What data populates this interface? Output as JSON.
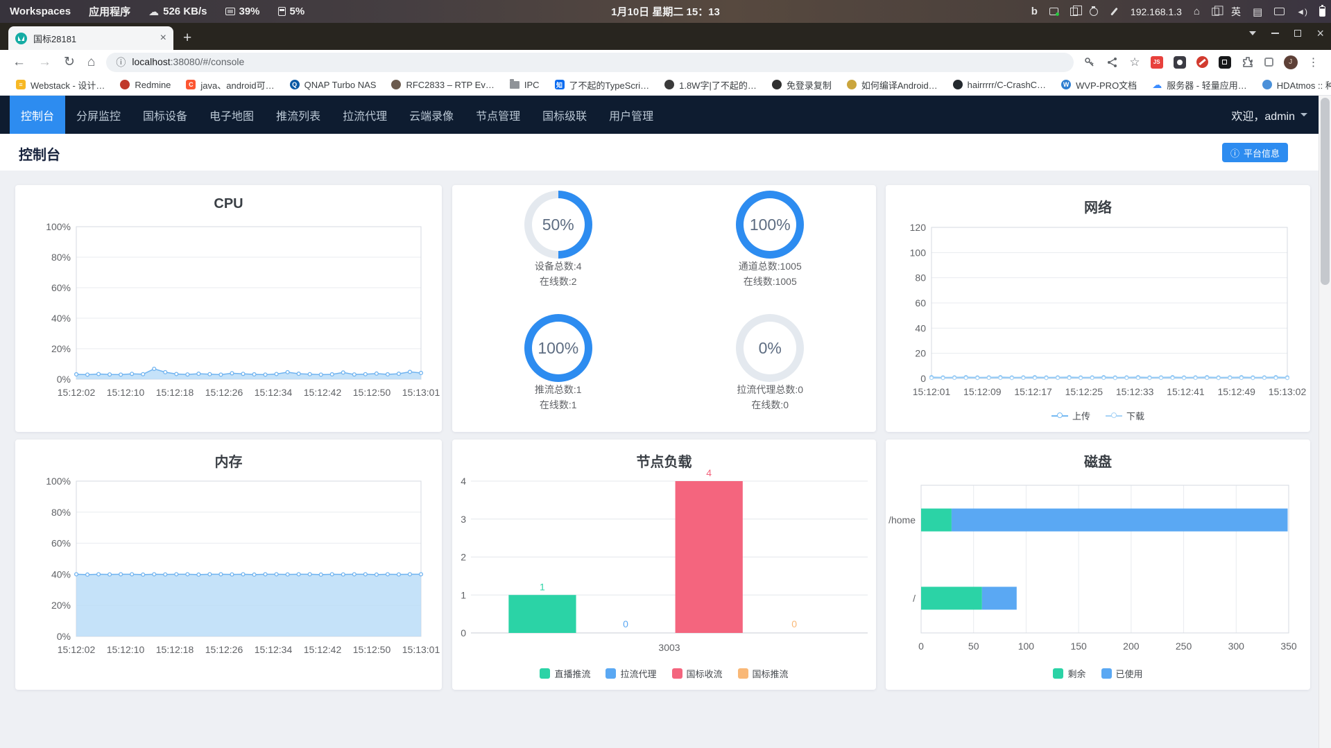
{
  "colors": {
    "primary": "#2d8cf0",
    "ring_track": "#e4e9ef",
    "navy": "#0e1c30",
    "green": "#2bd3a6",
    "blue": "#5aa8f3",
    "pink": "#f4657e",
    "orange": "#f9b877"
  },
  "system_bar": {
    "workspaces": "Workspaces",
    "applications": "应用程序",
    "network_speed": "526 KB/s",
    "cpu_usage": "39%",
    "memory_usage": "5%",
    "clock": "1月10日 星期二 15：13",
    "ip": "192.168.1.3",
    "input_language": "英"
  },
  "browser": {
    "tab_title": "国标28181",
    "url": {
      "host": "localhost",
      "rest": ":38080/#/console"
    },
    "bookmarks": [
      {
        "label": "Webstack - 设计…",
        "shape": "square",
        "color": "#f7b824",
        "letter": "≡"
      },
      {
        "label": "Redmine",
        "shape": "circle",
        "color": "#c0392b",
        "letter": ""
      },
      {
        "label": "java、android可…",
        "shape": "square",
        "color": "#fc5531",
        "letter": "C"
      },
      {
        "label": "QNAP Turbo NAS",
        "shape": "circle",
        "color": "#0a5aa5",
        "letter": "Q"
      },
      {
        "label": "RFC2833 – RTP Ev…",
        "shape": "circle",
        "color": "#6b5b4e",
        "letter": ""
      },
      {
        "label": "IPC",
        "shape": "folder",
        "color": "#8f9398",
        "letter": ""
      },
      {
        "label": "了不起的TypeScri…",
        "shape": "square",
        "color": "#0b6cf0",
        "letter": "知"
      },
      {
        "label": "1.8W字|了不起的…",
        "shape": "circle",
        "color": "#3a3a3a",
        "letter": ""
      },
      {
        "label": "免登录复制",
        "shape": "circle",
        "color": "#2f2f2f",
        "letter": ""
      },
      {
        "label": "如何编译Android…",
        "shape": "circle",
        "color": "#caa53d",
        "letter": ""
      },
      {
        "label": "hairrrrr/C-CrashC…",
        "shape": "circle",
        "color": "#24292e",
        "letter": ""
      },
      {
        "label": "WVP-PRO文档",
        "shape": "circle",
        "color": "#2f7fd1",
        "letter": "W"
      },
      {
        "label": "服务器 - 轻量应用…",
        "shape": "cloud",
        "color": "#3b8cff",
        "letter": "☁"
      },
      {
        "label": "HDAtmos :: 种子\"…",
        "shape": "circle",
        "color": "#4a90d9",
        "letter": ""
      }
    ]
  },
  "nav": {
    "items": [
      "控制台",
      "分屏监控",
      "国标设备",
      "电子地图",
      "推流列表",
      "拉流代理",
      "云端录像",
      "节点管理",
      "国标级联",
      "用户管理"
    ],
    "active_index": 0,
    "welcome": "欢迎，admin"
  },
  "page": {
    "title": "控制台",
    "platform_info_label": "平台信息"
  },
  "stats": {
    "items": [
      {
        "percent": 50,
        "label": "50%",
        "line1": "设备总数:4",
        "line2": "在线数:2"
      },
      {
        "percent": 100,
        "label": "100%",
        "line1": "通道总数:1005",
        "line2": "在线数:1005"
      },
      {
        "percent": 100,
        "label": "100%",
        "line1": "推流总数:1",
        "line2": "在线数:1"
      },
      {
        "percent": 0,
        "label": "0%",
        "line1": "拉流代理总数:0",
        "line2": "在线数:0"
      }
    ]
  },
  "chart_data": [
    {
      "id": "cpu",
      "type": "area",
      "title": "CPU",
      "x_ticks": [
        "15:12:02",
        "15:12:10",
        "15:12:18",
        "15:12:26",
        "15:12:34",
        "15:12:42",
        "15:12:50",
        "15:13:01"
      ],
      "y_ticks": [
        0,
        20,
        40,
        60,
        80,
        100
      ],
      "y_tick_suffix": "%",
      "ylim": [
        0,
        100
      ],
      "grid": true,
      "series": [
        {
          "name": "CPU",
          "color": "#6fb3f0",
          "fill": "#b6dbf8",
          "values": [
            3.2,
            3,
            3.4,
            3.1,
            3,
            3.5,
            3.3,
            6.8,
            4.6,
            3.4,
            3.1,
            3.6,
            3.3,
            3,
            3.9,
            3.5,
            3.2,
            3,
            3.4,
            4.6,
            3.6,
            3.3,
            3,
            3.2,
            4.4,
            3.1,
            3.3,
            3.7,
            3.2,
            3.6,
            4.8,
            4.1
          ]
        }
      ]
    },
    {
      "id": "memory",
      "type": "area",
      "title": "内存",
      "x_ticks": [
        "15:12:02",
        "15:12:10",
        "15:12:18",
        "15:12:26",
        "15:12:34",
        "15:12:42",
        "15:12:50",
        "15:13:01"
      ],
      "y_ticks": [
        0,
        20,
        40,
        60,
        80,
        100
      ],
      "y_tick_suffix": "%",
      "ylim": [
        0,
        100
      ],
      "grid": true,
      "series": [
        {
          "name": "内存",
          "color": "#6fb3f0",
          "fill": "#b6dbf8",
          "values": [
            40,
            39.8,
            40,
            39.9,
            40,
            40,
            39.8,
            40,
            39.9,
            40,
            40,
            39.8,
            40,
            40,
            39.9,
            40,
            39.8,
            40,
            40,
            39.9,
            40,
            40,
            39.8,
            40,
            39.9,
            40,
            40,
            39.8,
            40,
            39.9,
            40,
            40
          ]
        }
      ]
    },
    {
      "id": "network",
      "type": "line",
      "title": "网络",
      "x_ticks": [
        "15:12:01",
        "15:12:09",
        "15:12:17",
        "15:12:25",
        "15:12:33",
        "15:12:41",
        "15:12:49",
        "15:13:02"
      ],
      "y_ticks": [
        0,
        20,
        40,
        60,
        80,
        100,
        120
      ],
      "y_tick_suffix": "",
      "ylim": [
        0,
        120
      ],
      "grid": true,
      "legend": [
        "上传",
        "下载"
      ],
      "legend_position": "bottom",
      "series": [
        {
          "name": "上传",
          "color": "#74b9f2",
          "values": [
            1,
            0.8,
            0.9,
            1,
            0.8,
            0.9,
            1,
            0.8,
            0.9,
            1,
            0.8,
            0.9,
            1,
            0.8,
            0.9,
            1,
            0.8,
            0.9,
            1,
            0.8,
            0.9,
            1,
            0.8,
            0.9,
            1,
            0.8,
            0.9,
            1,
            0.8,
            0.9,
            1,
            0.8
          ]
        },
        {
          "name": "下载",
          "color": "#a7d3f6",
          "values": [
            0.5,
            0.4,
            0.5,
            0.5,
            0.4,
            0.5,
            0.5,
            0.4,
            0.5,
            0.5,
            0.4,
            0.5,
            0.5,
            0.4,
            0.5,
            0.5,
            0.4,
            0.5,
            0.5,
            0.4,
            0.5,
            0.5,
            0.4,
            0.5,
            0.5,
            0.4,
            0.5,
            0.5,
            0.4,
            0.5,
            0.5,
            0.4
          ]
        }
      ]
    },
    {
      "id": "node_load",
      "type": "bar",
      "title": "节点负载",
      "categories": [
        "3003"
      ],
      "y_ticks": [
        0,
        1,
        2,
        3,
        4
      ],
      "ylim": [
        0,
        4
      ],
      "grid": true,
      "legend": [
        "直播推流",
        "拉流代理",
        "国标收流",
        "国标推流"
      ],
      "legend_position": "bottom",
      "series": [
        {
          "name": "直播推流",
          "color": "#2bd3a6",
          "values": [
            1
          ]
        },
        {
          "name": "拉流代理",
          "color": "#5aa8f3",
          "values": [
            0
          ]
        },
        {
          "name": "国标收流",
          "color": "#f4657e",
          "values": [
            4
          ]
        },
        {
          "name": "国标推流",
          "color": "#f9b877",
          "values": [
            0
          ]
        }
      ]
    },
    {
      "id": "disk",
      "type": "hbar",
      "title": "磁盘",
      "categories": [
        "/home",
        "/"
      ],
      "x_ticks": [
        0,
        50,
        100,
        150,
        200,
        250,
        300,
        350
      ],
      "xlim": [
        0,
        350
      ],
      "grid": true,
      "legend": [
        "剩余",
        "已使用"
      ],
      "legend_position": "bottom",
      "series": [
        {
          "name": "剩余",
          "color": "#2bd3a6",
          "values": [
            29,
            58
          ]
        },
        {
          "name": "已使用",
          "color": "#5aa8f3",
          "values": [
            320,
            33
          ]
        }
      ]
    }
  ]
}
